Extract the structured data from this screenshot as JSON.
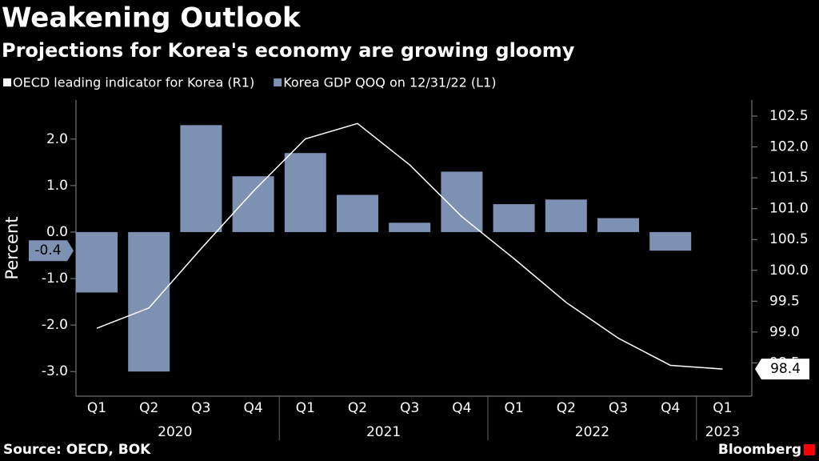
{
  "chart_data": {
    "type": "bar",
    "title": "Weakening Outlook",
    "subtitle": "Projections for Korea's economy are growing gloomy",
    "y_label": "Percent",
    "source": "Source: OECD, BOK",
    "brand": "Bloomberg",
    "categories": [
      "Q1",
      "Q2",
      "Q3",
      "Q4",
      "Q1",
      "Q2",
      "Q3",
      "Q4",
      "Q1",
      "Q2",
      "Q3",
      "Q4",
      "Q1"
    ],
    "years": [
      "2020",
      "2021",
      "2022",
      "2023"
    ],
    "series": [
      {
        "name": "OECD leading indicator for Korea (R1)",
        "type": "line",
        "axis": "y2",
        "color": "#ffffff",
        "values": [
          99.06,
          99.39,
          100.35,
          101.28,
          102.13,
          102.38,
          101.71,
          100.87,
          100.19,
          99.48,
          98.9,
          98.46,
          98.4
        ]
      },
      {
        "name": "Korea GDP QOQ on 12/31/22 (L1)",
        "type": "bar",
        "axis": "y",
        "color": "#7d91b3",
        "values": [
          -1.3,
          -3.0,
          2.3,
          1.2,
          1.7,
          0.8,
          0.2,
          1.3,
          0.6,
          0.7,
          0.3,
          -0.4,
          null
        ]
      }
    ],
    "ylim": [
      -3.53,
      2.84
    ],
    "yticks": [
      {
        "value": 2,
        "label": "2.0"
      },
      {
        "value": 1,
        "label": "1.0"
      },
      {
        "value": 0,
        "label": "0.0"
      },
      {
        "value": -1,
        "label": "-1.0"
      },
      {
        "value": -2,
        "label": "-2.0"
      },
      {
        "value": -3,
        "label": "-3.0"
      }
    ],
    "y2lim": [
      97.96,
      102.76
    ],
    "y2ticks": [
      102.5,
      {
        "value": 102,
        "label": "102.0"
      },
      101.5,
      {
        "value": 101,
        "label": "101.0"
      },
      100.5,
      {
        "value": 100,
        "label": "100.0"
      },
      99.5,
      {
        "value": 99,
        "label": "99.0"
      },
      98.5
    ]
  }
}
